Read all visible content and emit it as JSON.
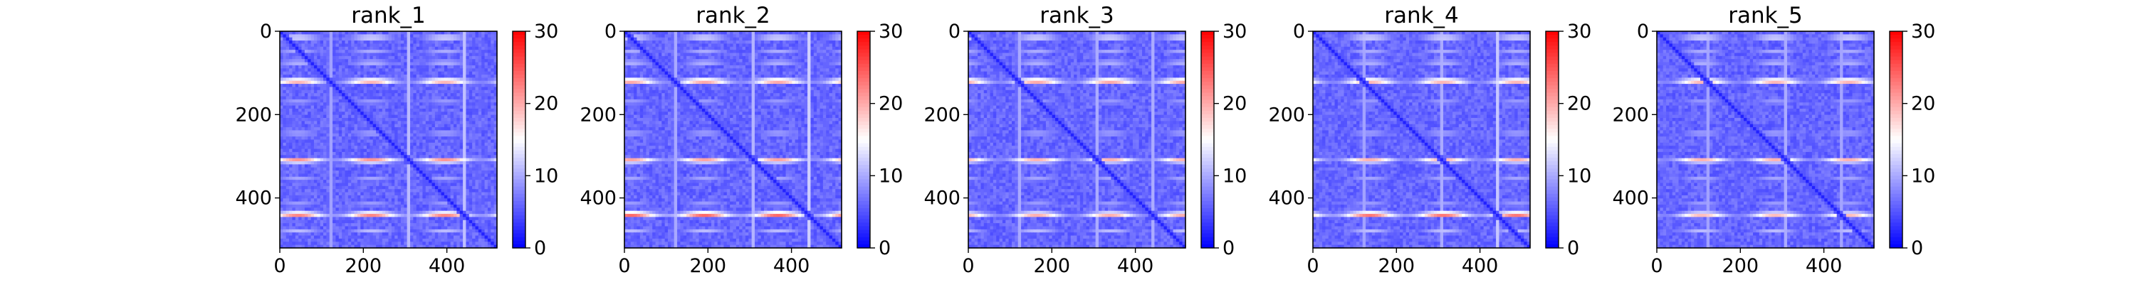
{
  "chart_data": [
    {
      "type": "heatmap",
      "title": "rank_1",
      "xlim": [
        0,
        520
      ],
      "ylim": [
        520,
        0
      ],
      "x_ticks": [
        "0",
        "200",
        "400"
      ],
      "x_tick_values": [
        0,
        200,
        400
      ],
      "y_ticks": [
        "0",
        "200",
        "400"
      ],
      "y_tick_values": [
        0,
        200,
        400
      ],
      "colorbar": {
        "range": [
          0,
          30
        ],
        "ticks": [
          "0",
          "10",
          "20",
          "30"
        ],
        "tick_values": [
          0,
          10,
          20,
          30
        ]
      },
      "colormap": [
        "#0000ff",
        "#ffffff",
        "#ff0000"
      ],
      "features": {
        "diagonal_value": 2,
        "background_value": 6,
        "bands": [
          {
            "center": 15,
            "value": 17
          },
          {
            "center": 50,
            "value": 12
          },
          {
            "center": 75,
            "value": 14
          },
          {
            "center": 120,
            "value": 25
          },
          {
            "center": 170,
            "value": 12
          },
          {
            "center": 245,
            "value": 13
          },
          {
            "center": 310,
            "value": 25
          },
          {
            "center": 355,
            "value": 12
          },
          {
            "center": 415,
            "value": 12
          },
          {
            "center": 440,
            "value": 27
          },
          {
            "center": 480,
            "value": 12
          }
        ]
      }
    },
    {
      "type": "heatmap",
      "title": "rank_2",
      "xlim": [
        0,
        520
      ],
      "ylim": [
        520,
        0
      ],
      "x_ticks": [
        "0",
        "200",
        "400"
      ],
      "x_tick_values": [
        0,
        200,
        400
      ],
      "y_ticks": [
        "0",
        "200",
        "400"
      ],
      "y_tick_values": [
        0,
        200,
        400
      ],
      "colorbar": {
        "range": [
          0,
          30
        ],
        "ticks": [
          "0",
          "10",
          "20",
          "30"
        ],
        "tick_values": [
          0,
          10,
          20,
          30
        ]
      },
      "colormap": [
        "#0000ff",
        "#ffffff",
        "#ff0000"
      ],
      "features": {
        "diagonal_value": 2,
        "background_value": 6,
        "bands": [
          {
            "center": 15,
            "value": 17
          },
          {
            "center": 50,
            "value": 12
          },
          {
            "center": 75,
            "value": 14
          },
          {
            "center": 120,
            "value": 26
          },
          {
            "center": 170,
            "value": 12
          },
          {
            "center": 245,
            "value": 13
          },
          {
            "center": 310,
            "value": 24
          },
          {
            "center": 355,
            "value": 12
          },
          {
            "center": 415,
            "value": 12
          },
          {
            "center": 440,
            "value": 29
          },
          {
            "center": 480,
            "value": 12
          }
        ]
      }
    },
    {
      "type": "heatmap",
      "title": "rank_3",
      "xlim": [
        0,
        520
      ],
      "ylim": [
        520,
        0
      ],
      "x_ticks": [
        "0",
        "200",
        "400"
      ],
      "x_tick_values": [
        0,
        200,
        400
      ],
      "y_ticks": [
        "0",
        "200",
        "400"
      ],
      "y_tick_values": [
        0,
        200,
        400
      ],
      "colorbar": {
        "range": [
          0,
          30
        ],
        "ticks": [
          "0",
          "10",
          "20",
          "30"
        ],
        "tick_values": [
          0,
          10,
          20,
          30
        ]
      },
      "colormap": [
        "#0000ff",
        "#ffffff",
        "#ff0000"
      ],
      "features": {
        "diagonal_value": 2,
        "background_value": 6,
        "bands": [
          {
            "center": 15,
            "value": 17
          },
          {
            "center": 50,
            "value": 12
          },
          {
            "center": 75,
            "value": 14
          },
          {
            "center": 120,
            "value": 26
          },
          {
            "center": 170,
            "value": 12
          },
          {
            "center": 245,
            "value": 13
          },
          {
            "center": 310,
            "value": 23
          },
          {
            "center": 355,
            "value": 12
          },
          {
            "center": 415,
            "value": 12
          },
          {
            "center": 440,
            "value": 24
          },
          {
            "center": 480,
            "value": 12
          }
        ]
      }
    },
    {
      "type": "heatmap",
      "title": "rank_4",
      "xlim": [
        0,
        520
      ],
      "ylim": [
        520,
        0
      ],
      "x_ticks": [
        "0",
        "200",
        "400"
      ],
      "x_tick_values": [
        0,
        200,
        400
      ],
      "y_ticks": [
        "0",
        "200",
        "400"
      ],
      "y_tick_values": [
        0,
        200,
        400
      ],
      "colorbar": {
        "range": [
          0,
          30
        ],
        "ticks": [
          "0",
          "10",
          "20",
          "30"
        ],
        "tick_values": [
          0,
          10,
          20,
          30
        ]
      },
      "colormap": [
        "#0000ff",
        "#ffffff",
        "#ff0000"
      ],
      "features": {
        "diagonal_value": 2,
        "background_value": 6,
        "bands": [
          {
            "center": 15,
            "value": 17
          },
          {
            "center": 50,
            "value": 12
          },
          {
            "center": 75,
            "value": 14
          },
          {
            "center": 120,
            "value": 25
          },
          {
            "center": 170,
            "value": 12
          },
          {
            "center": 245,
            "value": 13
          },
          {
            "center": 310,
            "value": 23
          },
          {
            "center": 355,
            "value": 12
          },
          {
            "center": 415,
            "value": 12
          },
          {
            "center": 440,
            "value": 28
          },
          {
            "center": 480,
            "value": 12
          }
        ]
      }
    },
    {
      "type": "heatmap",
      "title": "rank_5",
      "xlim": [
        0,
        520
      ],
      "ylim": [
        520,
        0
      ],
      "x_ticks": [
        "0",
        "200",
        "400"
      ],
      "x_tick_values": [
        0,
        200,
        400
      ],
      "y_ticks": [
        "0",
        "200",
        "400"
      ],
      "y_tick_values": [
        0,
        200,
        400
      ],
      "colorbar": {
        "range": [
          0,
          30
        ],
        "ticks": [
          "0",
          "10",
          "20",
          "30"
        ],
        "tick_values": [
          0,
          10,
          20,
          30
        ]
      },
      "colormap": [
        "#0000ff",
        "#ffffff",
        "#ff0000"
      ],
      "features": {
        "diagonal_value": 2,
        "background_value": 6,
        "bands": [
          {
            "center": 15,
            "value": 17
          },
          {
            "center": 50,
            "value": 12
          },
          {
            "center": 75,
            "value": 14
          },
          {
            "center": 120,
            "value": 25
          },
          {
            "center": 170,
            "value": 12
          },
          {
            "center": 245,
            "value": 13
          },
          {
            "center": 310,
            "value": 23
          },
          {
            "center": 355,
            "value": 12
          },
          {
            "center": 415,
            "value": 12
          },
          {
            "center": 440,
            "value": 23
          },
          {
            "center": 480,
            "value": 12
          }
        ]
      }
    }
  ]
}
